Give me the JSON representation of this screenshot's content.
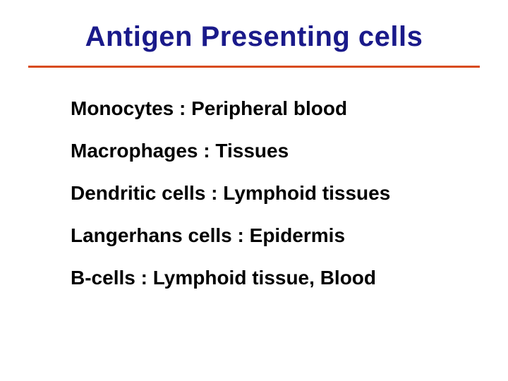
{
  "title": "Antigen Presenting cells",
  "title_color": "#1a1a8a",
  "title_fontsize": 40,
  "title_font": "Comic Sans MS",
  "divider_color": "#d84a1a",
  "divider_height": 3,
  "body_font": "Arial",
  "body_fontsize": 28,
  "body_color": "#000000",
  "line_spacing": 28,
  "background_color": "#ffffff",
  "items": [
    "Monocytes : Peripheral blood",
    "Macrophages : Tissues",
    "Dendritic cells : Lymphoid tissues",
    "Langerhans cells : Epidermis",
    "B-cells : Lymphoid tissue, Blood"
  ]
}
